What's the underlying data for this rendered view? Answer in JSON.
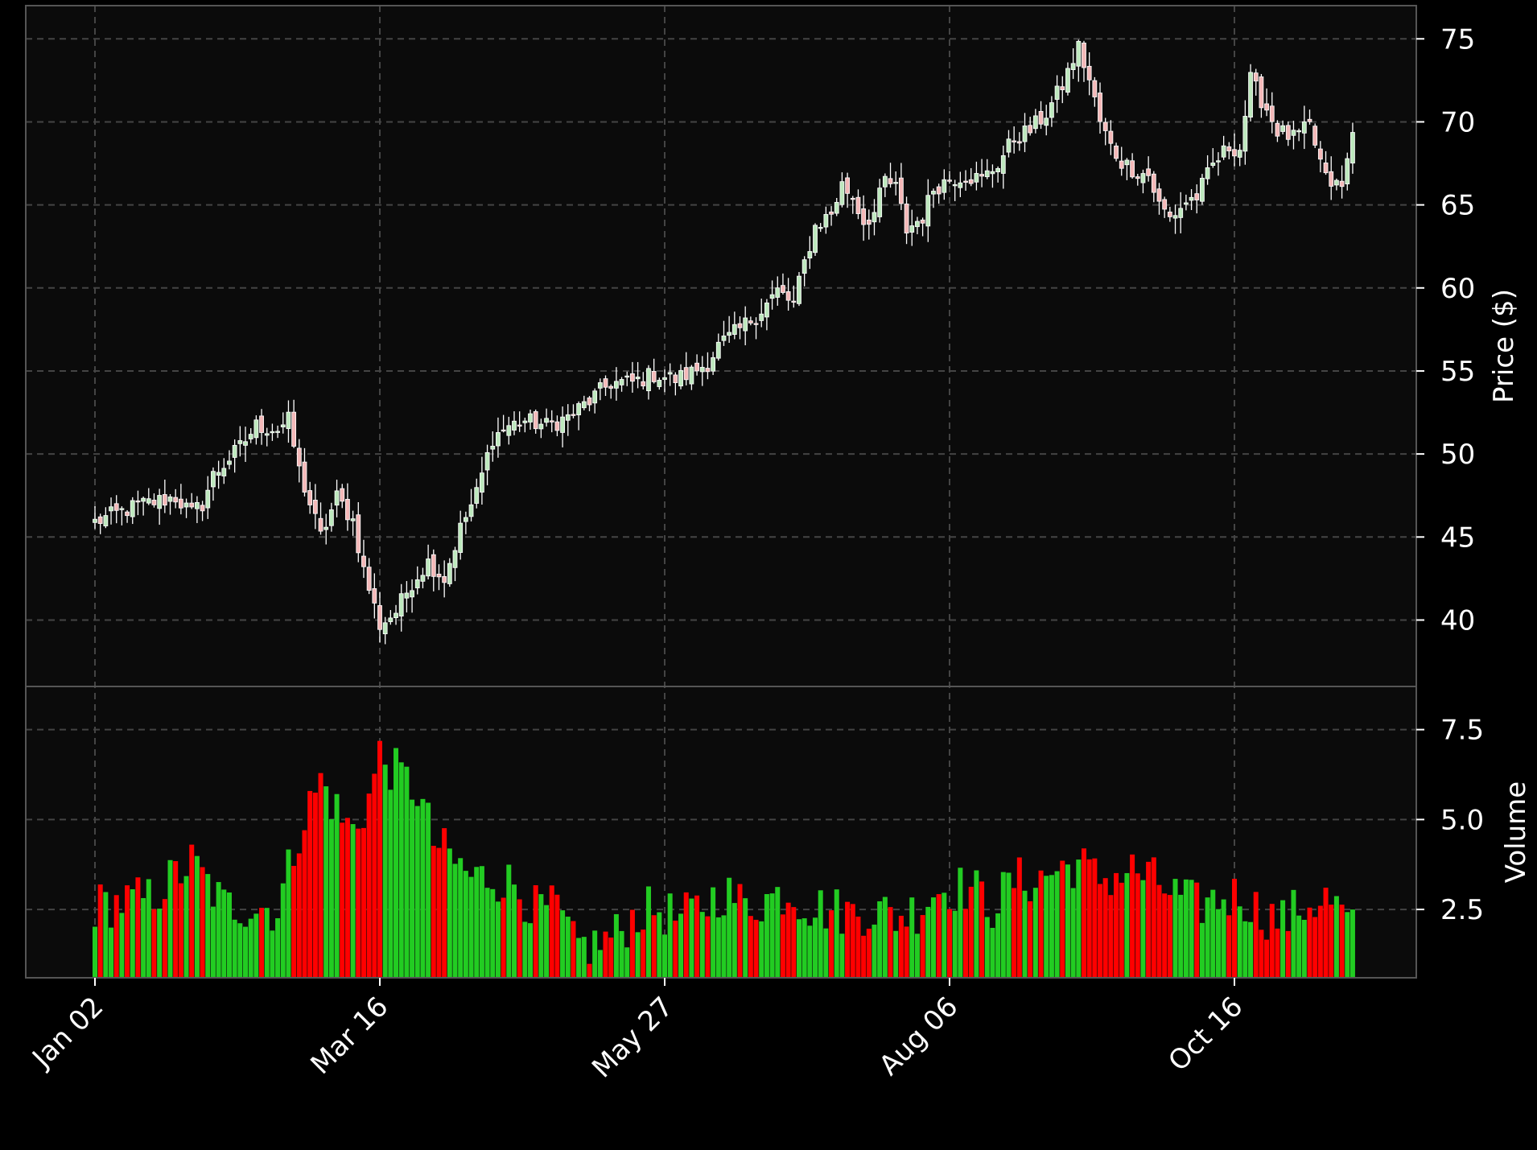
{
  "chart_data": {
    "type": "candlestick",
    "x_ticks": [
      {
        "index": 0,
        "label": "Jan 02"
      },
      {
        "index": 53,
        "label": "Mar 16"
      },
      {
        "index": 106,
        "label": "May 27"
      },
      {
        "index": 159,
        "label": "Aug 06"
      },
      {
        "index": 212,
        "label": "Oct 16"
      }
    ],
    "n_bars": 235,
    "price_panel": {
      "ylabel": "Price ($)",
      "ylim": [
        36.0,
        77.0
      ],
      "yticks": [
        40,
        45,
        50,
        55,
        60,
        65,
        70,
        75
      ],
      "ytick_labels": [
        "40",
        "45",
        "50",
        "55",
        "60",
        "65",
        "70",
        "75"
      ],
      "grid": true
    },
    "volume_panel": {
      "ylabel": "Volume",
      "ylim": [
        0.6,
        8.7
      ],
      "yticks": [
        2.5,
        5.0,
        7.5
      ],
      "ytick_labels": [
        "2.5",
        "5.0",
        "7.5"
      ],
      "grid": true
    },
    "colors": {
      "up": "#22cc22",
      "down": "#ff0000",
      "candle_up_body": "#bde8bd",
      "candle_down_body": "#f4b8b8",
      "wick": "#ffffff",
      "panel_bg": "#0b0b0b",
      "grid": "#444444",
      "frame": "#555555"
    },
    "close_anchors": [
      [
        0,
        45.9
      ],
      [
        8,
        46.9
      ],
      [
        15,
        47.4
      ],
      [
        18,
        46.4
      ],
      [
        20,
        47.0
      ],
      [
        22,
        48.7
      ],
      [
        27,
        50.4
      ],
      [
        30,
        51.7
      ],
      [
        34,
        51.5
      ],
      [
        36,
        52.0
      ],
      [
        38,
        49.0
      ],
      [
        42,
        45.0
      ],
      [
        45,
        47.4
      ],
      [
        48,
        46.0
      ],
      [
        50,
        43.0
      ],
      [
        53,
        39.7
      ],
      [
        56,
        40.5
      ],
      [
        59,
        42.3
      ],
      [
        62,
        43.5
      ],
      [
        65,
        42.5
      ],
      [
        68,
        45.5
      ],
      [
        71,
        47.6
      ],
      [
        74,
        51.0
      ],
      [
        77,
        51.7
      ],
      [
        80,
        52.0
      ],
      [
        84,
        51.7
      ],
      [
        88,
        52.2
      ],
      [
        92,
        53.2
      ],
      [
        96,
        54.3
      ],
      [
        100,
        54.3
      ],
      [
        104,
        54.8
      ],
      [
        108,
        54.5
      ],
      [
        111,
        54.9
      ],
      [
        114,
        55.5
      ],
      [
        116,
        56.5
      ],
      [
        120,
        57.5
      ],
      [
        124,
        58.7
      ],
      [
        127,
        59.8
      ],
      [
        130,
        59.0
      ],
      [
        132,
        61.5
      ],
      [
        134,
        63.7
      ],
      [
        137,
        64.5
      ],
      [
        139,
        66.2
      ],
      [
        141,
        65.5
      ],
      [
        143,
        64.0
      ],
      [
        145,
        64.5
      ],
      [
        147,
        66.5
      ],
      [
        149,
        66.0
      ],
      [
        151,
        63.5
      ],
      [
        154,
        64.3
      ],
      [
        156,
        66.0
      ],
      [
        159,
        66.6
      ],
      [
        162,
        66.8
      ],
      [
        165,
        66.5
      ],
      [
        168,
        67.5
      ],
      [
        171,
        69.0
      ],
      [
        174,
        69.5
      ],
      [
        177,
        70.5
      ],
      [
        180,
        72.2
      ],
      [
        183,
        74.5
      ],
      [
        185,
        72.5
      ],
      [
        187,
        70.0
      ],
      [
        189,
        68.5
      ],
      [
        191,
        67.6
      ],
      [
        194,
        67.0
      ],
      [
        196,
        66.8
      ],
      [
        198,
        65.0
      ],
      [
        200,
        64.2
      ],
      [
        203,
        65.2
      ],
      [
        205,
        65.5
      ],
      [
        208,
        67.4
      ],
      [
        211,
        68.5
      ],
      [
        213,
        68.4
      ],
      [
        215,
        72.5
      ],
      [
        218,
        70.8
      ],
      [
        220,
        69.5
      ],
      [
        223,
        69.0
      ],
      [
        226,
        69.7
      ],
      [
        229,
        66.5
      ],
      [
        232,
        66.0
      ],
      [
        234,
        69.3
      ]
    ],
    "volume_anchors": [
      [
        0,
        2.6
      ],
      [
        10,
        2.8
      ],
      [
        18,
        3.8
      ],
      [
        24,
        2.6
      ],
      [
        30,
        2.6
      ],
      [
        34,
        2.5
      ],
      [
        38,
        4.7
      ],
      [
        42,
        6.1
      ],
      [
        46,
        5.0
      ],
      [
        48,
        4.7
      ],
      [
        51,
        5.6
      ],
      [
        53,
        6.8
      ],
      [
        56,
        6.3
      ],
      [
        60,
        5.8
      ],
      [
        63,
        4.4
      ],
      [
        67,
        3.8
      ],
      [
        70,
        3.4
      ],
      [
        74,
        3.4
      ],
      [
        78,
        3.2
      ],
      [
        82,
        2.5
      ],
      [
        86,
        2.5
      ],
      [
        89,
        1.5
      ],
      [
        93,
        1.5
      ],
      [
        97,
        1.8
      ],
      [
        101,
        2.4
      ],
      [
        105,
        2.5
      ],
      [
        109,
        2.2
      ],
      [
        113,
        2.6
      ],
      [
        117,
        3.0
      ],
      [
        121,
        2.6
      ],
      [
        125,
        2.8
      ],
      [
        129,
        3.0
      ],
      [
        133,
        2.6
      ],
      [
        137,
        2.5
      ],
      [
        141,
        2.4
      ],
      [
        145,
        2.5
      ],
      [
        149,
        2.3
      ],
      [
        153,
        2.5
      ],
      [
        156,
        3.0
      ],
      [
        159,
        3.1
      ],
      [
        163,
        3.1
      ],
      [
        167,
        2.6
      ],
      [
        171,
        3.3
      ],
      [
        175,
        3.3
      ],
      [
        179,
        3.6
      ],
      [
        183,
        3.8
      ],
      [
        186,
        3.4
      ],
      [
        189,
        3.4
      ],
      [
        193,
        3.6
      ],
      [
        197,
        3.3
      ],
      [
        201,
        2.9
      ],
      [
        205,
        2.6
      ],
      [
        209,
        2.8
      ],
      [
        213,
        2.9
      ],
      [
        217,
        2.4
      ],
      [
        221,
        2.2
      ],
      [
        225,
        2.6
      ],
      [
        229,
        2.8
      ],
      [
        232,
        2.4
      ],
      [
        234,
        1.9
      ]
    ]
  }
}
